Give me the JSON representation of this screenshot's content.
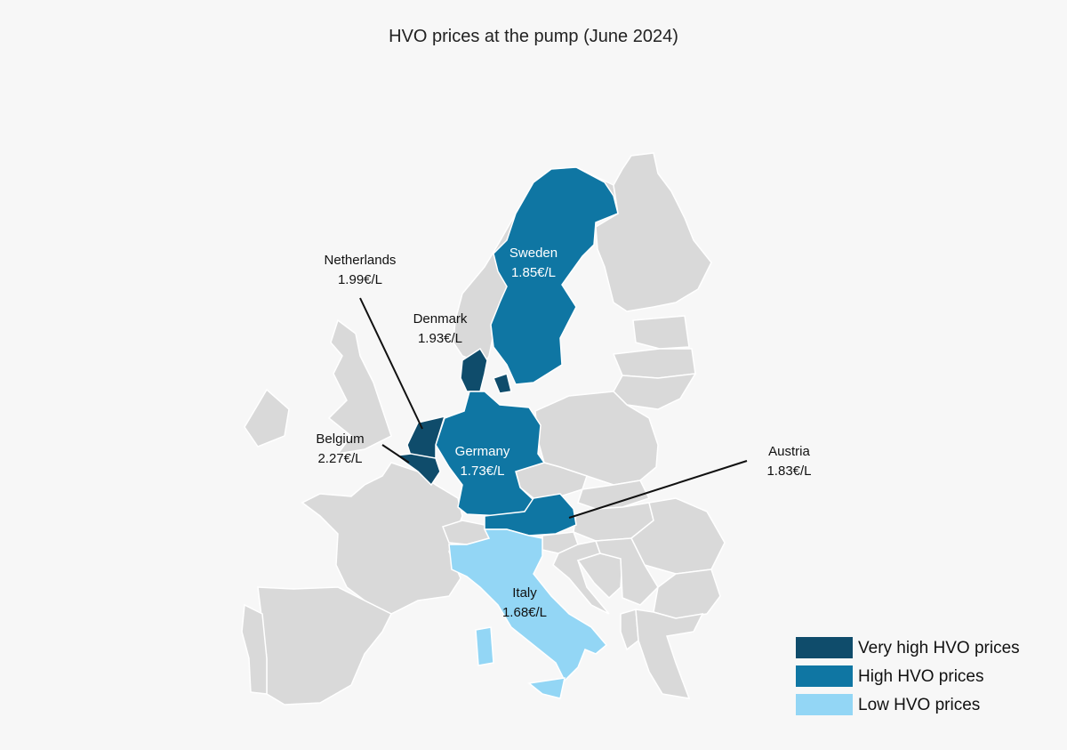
{
  "title": "HVO prices at the pump (June 2024)",
  "colors": {
    "background": "#f7f7f7",
    "other_country": "#d9d9d9",
    "border": "#ffffff",
    "very_high": "#0f4c6b",
    "high": "#0f76a3",
    "low": "#93d6f5",
    "leader_line": "#111111"
  },
  "countries": {
    "sweden": {
      "name": "Sweden",
      "price": "1.85€/L",
      "category": "high"
    },
    "netherlands": {
      "name": "Netherlands",
      "price": "1.99€/L",
      "category": "very_high"
    },
    "denmark": {
      "name": "Denmark",
      "price": "1.93€/L",
      "category": "very_high"
    },
    "belgium": {
      "name": "Belgium",
      "price": "2.27€/L",
      "category": "very_high"
    },
    "germany": {
      "name": "Germany",
      "price": "1.73€/L",
      "category": "high"
    },
    "austria": {
      "name": "Austria",
      "price": "1.83€/L",
      "category": "high"
    },
    "italy": {
      "name": "Italy",
      "price": "1.68€/L",
      "category": "low"
    }
  },
  "legend": {
    "very_high": "Very high HVO prices",
    "high": "High HVO prices",
    "low": "Low HVO prices"
  }
}
